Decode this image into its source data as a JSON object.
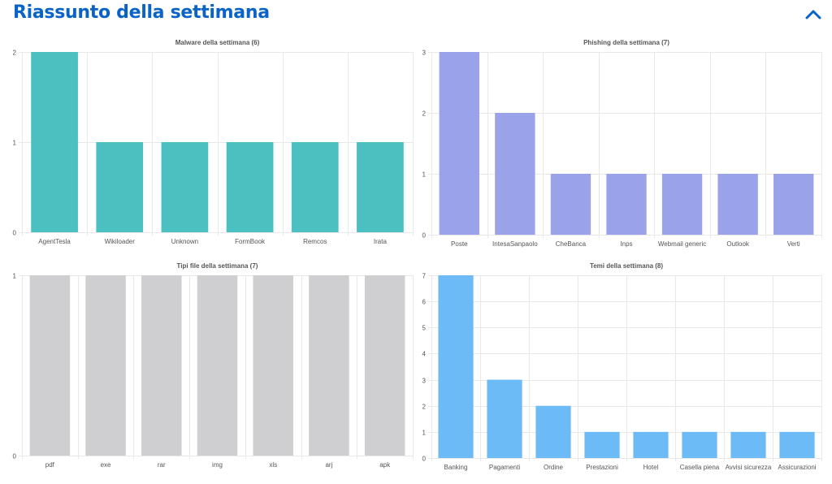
{
  "header": {
    "title": "Riassunto della settimana",
    "toggle_icon": "chevron-up-icon"
  },
  "chart_data": [
    {
      "type": "bar",
      "title": "Malware della settimana (6)",
      "categories": [
        "AgentTesla",
        "Wikiloader",
        "Unknown",
        "FormBook",
        "Remcos",
        "Irata"
      ],
      "values": [
        2,
        1,
        1,
        1,
        1,
        1
      ],
      "ylim": [
        0,
        2
      ],
      "yticks": [
        0,
        1,
        2
      ],
      "color": "#4bc0c0",
      "grid": true
    },
    {
      "type": "bar",
      "title": "Phishing della settimana (7)",
      "categories": [
        "Poste",
        "IntesaSanpaolo",
        "CheBanca",
        "Inps",
        "Webmail generic",
        "Outlook",
        "Verti"
      ],
      "values": [
        3,
        2,
        1,
        1,
        1,
        1,
        1
      ],
      "ylim": [
        0,
        3
      ],
      "yticks": [
        0,
        1,
        2,
        3
      ],
      "color": "#9aa2ea",
      "grid": true
    },
    {
      "type": "bar",
      "title": "Tipi file della settimana (7)",
      "categories": [
        "pdf",
        "exe",
        "rar",
        "img",
        "xls",
        "arj",
        "apk"
      ],
      "values": [
        1,
        1,
        1,
        1,
        1,
        1,
        1
      ],
      "ylim": [
        0,
        1
      ],
      "yticks": [
        0,
        1
      ],
      "color": "#cfcfd1",
      "grid": true
    },
    {
      "type": "bar",
      "title": "Temi della settimana (8)",
      "categories": [
        "Banking",
        "Pagamenti",
        "Ordine",
        "Prestazioni",
        "Hotel",
        "Casella piena",
        "Avvisi sicurezza",
        "Assicurazioni"
      ],
      "values": [
        7,
        3,
        2,
        1,
        1,
        1,
        1,
        1
      ],
      "ylim": [
        0,
        7
      ],
      "yticks": [
        0,
        1,
        2,
        3,
        4,
        5,
        6,
        7
      ],
      "color": "#6cbbf7",
      "grid": true
    }
  ]
}
